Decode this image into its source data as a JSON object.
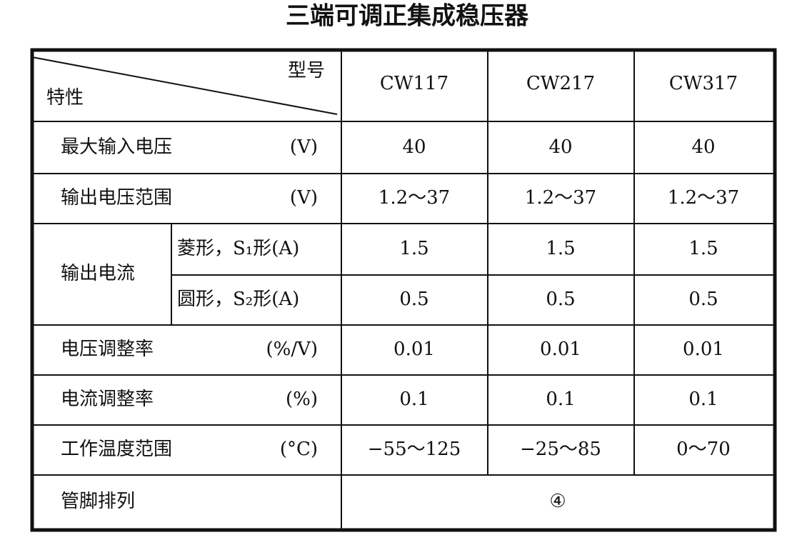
{
  "title": "三端可调正集成稳压器",
  "table": {
    "header": {
      "corner_top": "型号",
      "corner_bottom": "特性",
      "models": [
        "CW117",
        "CW217",
        "CW317"
      ]
    },
    "rows": [
      {
        "label": "最大输入电压",
        "unit": "(V)",
        "values": [
          "40",
          "40",
          "40"
        ]
      },
      {
        "label": "输出电压范围",
        "unit": "(V)",
        "values": [
          "1.2～37",
          "1.2～37",
          "1.2～37"
        ]
      },
      {
        "label": "输出电流",
        "subrows": [
          {
            "label": "菱形，S₁形(A)",
            "values": [
              "1.5",
              "1.5",
              "1.5"
            ]
          },
          {
            "label": "圆形，S₂形(A)",
            "values": [
              "0.5",
              "0.5",
              "0.5"
            ]
          }
        ]
      },
      {
        "label": "电压调整率",
        "unit": "(%/V)",
        "values": [
          "0.01",
          "0.01",
          "0.01"
        ]
      },
      {
        "label": "电流调整率",
        "unit": "(%)",
        "values": [
          "0.1",
          "0.1",
          "0.1"
        ]
      },
      {
        "label": "工作温度范围",
        "unit": "(°C)",
        "values": [
          "−55～125",
          "−25～85",
          "0～70"
        ]
      },
      {
        "label": "管脚排列",
        "value": "④"
      }
    ]
  }
}
